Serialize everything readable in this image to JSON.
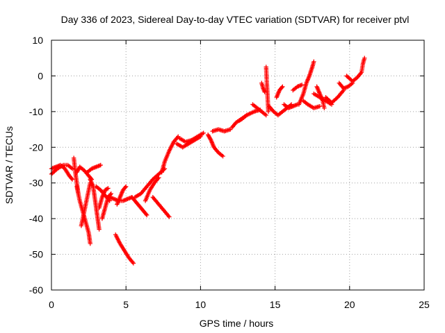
{
  "chart_data": {
    "type": "scatter",
    "title": "Day 336 of 2023, Sidereal Day-to-day VTEC variation (SDTVAR) for receiver ptvl",
    "xlabel": "GPS time / hours",
    "ylabel": "SDTVAR / TECUs",
    "xlim": [
      0,
      25
    ],
    "ylim": [
      -60,
      10
    ],
    "xticks": [
      "0",
      "5",
      "10",
      "15",
      "20",
      "25"
    ],
    "yticks": [
      "-60",
      "-50",
      "-40",
      "-30",
      "-20",
      "-10",
      "0",
      "10"
    ],
    "grid": true,
    "marker": "plus",
    "color": "#ff0000",
    "series": [
      {
        "segments": [
          [
            [
              0.0,
              -26
            ],
            [
              0.3,
              -25.5
            ],
            [
              0.6,
              -25
            ],
            [
              0.9,
              -26
            ],
            [
              1.2,
              -28
            ],
            [
              1.4,
              -29
            ]
          ],
          [
            [
              0.0,
              -27.5
            ],
            [
              0.4,
              -26
            ],
            [
              0.8,
              -25
            ],
            [
              1.1,
              -25
            ],
            [
              1.4,
              -26
            ]
          ],
          [
            [
              1.5,
              -23
            ],
            [
              1.6,
              -27
            ],
            [
              1.7,
              -30
            ],
            [
              1.8,
              -33
            ]
          ],
          [
            [
              1.7,
              -31
            ],
            [
              1.9,
              -35
            ],
            [
              2.1,
              -38
            ],
            [
              2.3,
              -41
            ],
            [
              2.5,
              -44
            ],
            [
              2.6,
              -47
            ]
          ],
          [
            [
              2.0,
              -42
            ],
            [
              2.2,
              -38
            ],
            [
              2.4,
              -34
            ],
            [
              2.6,
              -30
            ]
          ],
          [
            [
              1.7,
              -27
            ],
            [
              1.9,
              -25.5
            ],
            [
              2.2,
              -26.5
            ],
            [
              2.5,
              -28
            ],
            [
              2.7,
              -29
            ]
          ],
          [
            [
              2.4,
              -27
            ],
            [
              2.7,
              -26
            ],
            [
              3.0,
              -25.5
            ],
            [
              3.3,
              -25
            ]
          ],
          [
            [
              2.6,
              -29
            ],
            [
              2.8,
              -31
            ],
            [
              2.9,
              -34
            ],
            [
              3.0,
              -37
            ],
            [
              3.1,
              -40
            ],
            [
              3.2,
              -43
            ]
          ],
          [
            [
              3.0,
              -31
            ],
            [
              3.3,
              -32
            ],
            [
              3.6,
              -33.5
            ],
            [
              3.9,
              -35
            ]
          ],
          [
            [
              3.2,
              -37
            ],
            [
              3.4,
              -34
            ],
            [
              3.6,
              -32
            ],
            [
              3.8,
              -31.5
            ]
          ],
          [
            [
              3.4,
              -40
            ],
            [
              3.6,
              -37
            ],
            [
              3.8,
              -34
            ],
            [
              4.0,
              -33
            ]
          ],
          [
            [
              3.9,
              -34
            ],
            [
              4.2,
              -34.5
            ],
            [
              4.5,
              -35
            ],
            [
              4.8,
              -35
            ],
            [
              5.1,
              -34.5
            ],
            [
              5.4,
              -34
            ]
          ],
          [
            [
              4.4,
              -36
            ],
            [
              4.6,
              -34
            ],
            [
              4.8,
              -32
            ],
            [
              5.0,
              -31
            ]
          ],
          [
            [
              4.3,
              -44.5
            ],
            [
              4.6,
              -47
            ],
            [
              4.9,
              -49
            ],
            [
              5.2,
              -51
            ],
            [
              5.5,
              -52.5
            ]
          ],
          [
            [
              5.4,
              -34
            ],
            [
              5.6,
              -35
            ],
            [
              5.8,
              -36
            ],
            [
              6.0,
              -37
            ],
            [
              6.2,
              -38
            ],
            [
              6.4,
              -39
            ]
          ],
          [
            [
              5.6,
              -34
            ],
            [
              6.0,
              -33
            ],
            [
              6.4,
              -31
            ],
            [
              6.8,
              -29
            ],
            [
              7.2,
              -27.5
            ],
            [
              7.6,
              -26
            ]
          ],
          [
            [
              6.3,
              -35
            ],
            [
              6.6,
              -32
            ],
            [
              6.9,
              -30
            ],
            [
              7.2,
              -28.5
            ]
          ],
          [
            [
              6.8,
              -34
            ],
            [
              7.2,
              -36
            ],
            [
              7.6,
              -38
            ],
            [
              7.9,
              -39.5
            ]
          ],
          [
            [
              7.4,
              -27
            ],
            [
              7.6,
              -24
            ],
            [
              7.9,
              -21
            ],
            [
              8.2,
              -18.5
            ],
            [
              8.5,
              -17
            ]
          ],
          [
            [
              8.4,
              -19
            ],
            [
              8.8,
              -20
            ],
            [
              9.2,
              -19
            ],
            [
              9.6,
              -18
            ],
            [
              10.0,
              -17
            ]
          ],
          [
            [
              8.6,
              -17.5
            ],
            [
              9.0,
              -18.5
            ],
            [
              9.4,
              -18
            ],
            [
              9.8,
              -17
            ],
            [
              10.2,
              -16
            ]
          ],
          [
            [
              10.5,
              -16.5
            ],
            [
              10.7,
              -18
            ],
            [
              10.9,
              -20
            ],
            [
              11.2,
              -21.5
            ],
            [
              11.5,
              -22.5
            ]
          ],
          [
            [
              10.8,
              -15.5
            ],
            [
              11.2,
              -15
            ],
            [
              11.6,
              -15.5
            ],
            [
              12.0,
              -15
            ]
          ],
          [
            [
              12.1,
              -14.5
            ],
            [
              12.4,
              -13
            ],
            [
              12.8,
              -12
            ],
            [
              13.1,
              -11
            ]
          ],
          [
            [
              12.6,
              -12.5
            ],
            [
              13.1,
              -11
            ],
            [
              13.6,
              -10
            ],
            [
              14.0,
              -9.5
            ]
          ],
          [
            [
              13.5,
              -8
            ],
            [
              13.8,
              -9
            ],
            [
              14.1,
              -10
            ],
            [
              14.4,
              -11
            ]
          ],
          [
            [
              14.1,
              -2
            ],
            [
              14.2,
              -3.5
            ],
            [
              14.3,
              -4.5
            ]
          ],
          [
            [
              14.4,
              2.5
            ],
            [
              14.45,
              -2
            ],
            [
              14.5,
              -6
            ],
            [
              14.55,
              -10
            ]
          ],
          [
            [
              14.6,
              -8.5
            ],
            [
              14.9,
              -10
            ],
            [
              15.2,
              -11
            ],
            [
              15.5,
              -10
            ],
            [
              15.8,
              -9
            ],
            [
              16.1,
              -8
            ]
          ],
          [
            [
              15.1,
              -6
            ],
            [
              15.3,
              -4
            ],
            [
              15.5,
              -3
            ]
          ],
          [
            [
              15.6,
              -8
            ],
            [
              15.9,
              -9
            ],
            [
              16.2,
              -8.5
            ],
            [
              16.5,
              -8
            ]
          ],
          [
            [
              16.2,
              -4
            ],
            [
              16.5,
              -3
            ],
            [
              16.8,
              -2.5
            ]
          ],
          [
            [
              16.6,
              -8
            ],
            [
              16.9,
              -5
            ],
            [
              17.1,
              -2
            ],
            [
              17.3,
              0
            ],
            [
              17.5,
              2.5
            ],
            [
              17.6,
              4
            ]
          ],
          [
            [
              16.9,
              -7
            ],
            [
              17.2,
              -8
            ],
            [
              17.6,
              -9
            ],
            [
              18.0,
              -8.5
            ]
          ],
          [
            [
              17.6,
              -5
            ],
            [
              18.0,
              -6
            ],
            [
              18.4,
              -7
            ],
            [
              18.8,
              -8
            ]
          ],
          [
            [
              17.8,
              -3
            ],
            [
              18.0,
              -5
            ],
            [
              18.2,
              -7
            ],
            [
              18.3,
              -9
            ]
          ],
          [
            [
              18.4,
              -6
            ],
            [
              18.8,
              -7.5
            ],
            [
              19.2,
              -6
            ],
            [
              19.6,
              -4
            ]
          ],
          [
            [
              19.3,
              -2
            ],
            [
              19.6,
              -3.5
            ],
            [
              19.9,
              -3
            ],
            [
              20.2,
              -2
            ]
          ],
          [
            [
              19.8,
              0
            ],
            [
              20.2,
              -1.5
            ],
            [
              20.5,
              -0.5
            ],
            [
              20.8,
              1
            ],
            [
              20.9,
              3.5
            ],
            [
              21.0,
              5
            ]
          ]
        ]
      }
    ]
  }
}
